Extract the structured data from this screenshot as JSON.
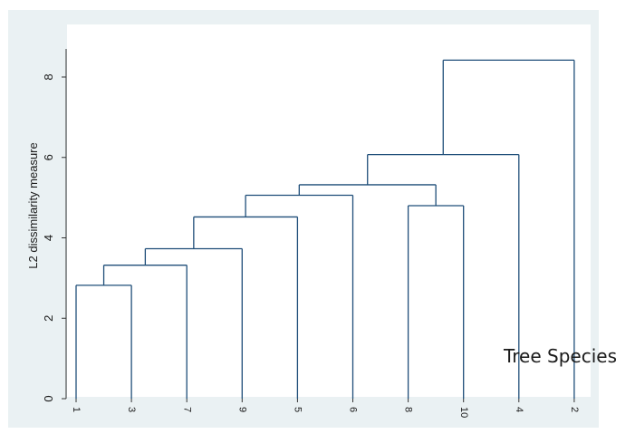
{
  "chart_data": {
    "type": "dendrogram",
    "ylabel": "L2 dissimilarity measure",
    "ylim": [
      0,
      8.7
    ],
    "yticks": [
      0,
      2,
      4,
      6,
      8
    ],
    "leaf_order": [
      "1",
      "3",
      "7",
      "9",
      "5",
      "6",
      "8",
      "10",
      "4",
      "2"
    ],
    "merges": [
      {
        "left": "1",
        "right": "3",
        "height": 2.82
      },
      {
        "left": "1,3",
        "right": "7",
        "height": 3.32
      },
      {
        "left": "1,3,7",
        "right": "9",
        "height": 3.73
      },
      {
        "left": "1,3,7,9",
        "right": "5",
        "height": 4.52
      },
      {
        "left": "8",
        "right": "10",
        "height": 4.8
      },
      {
        "left": "1,3,7,9,5",
        "right": "6",
        "height": 5.06
      },
      {
        "left": "1,3,7,9,5,6",
        "right": "8,10",
        "height": 5.32
      },
      {
        "left": "1,3,7,9,5,6,8,10",
        "right": "4",
        "height": 6.07
      },
      {
        "left": "1,3,7,9,5,6,8,10,4",
        "right": "2",
        "height": 8.42
      }
    ],
    "grid": false,
    "colors": {
      "background": "#ffffff",
      "plot_background": "#eaf1f3",
      "plot_region": "#ffffff",
      "line": "#1f4e79",
      "axis": "#333333",
      "text": "#1a1a1a"
    }
  },
  "annotation": "Tree Species"
}
